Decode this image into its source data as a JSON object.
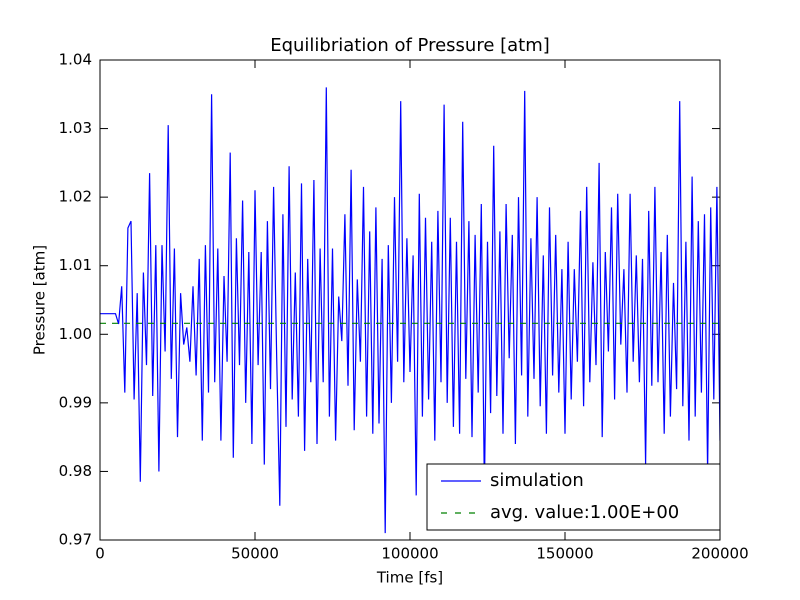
{
  "chart_data": {
    "type": "line",
    "title": "Equilibriation of Pressure [atm]",
    "x_label": "Time [fs]",
    "y_label": "Pressure [atm]",
    "xlim": [
      0,
      200000
    ],
    "xticks": [
      0,
      50000,
      100000,
      150000,
      200000
    ],
    "ylim": [
      0.97,
      1.04
    ],
    "yticks": [
      0.97,
      0.98,
      0.99,
      {
        "value": 1,
        "label": "1.00"
      },
      1.01,
      1.02,
      1.03,
      1.04
    ],
    "grid": false,
    "legend": "lower right",
    "series": [
      {
        "name": "simulation",
        "color": "#0000ff",
        "style": "solid",
        "x": [
          0,
          1000,
          2000,
          3000,
          4000,
          5000,
          6000,
          7000,
          8000,
          9000,
          10000,
          11000,
          12000,
          13000,
          14000,
          15000,
          16000,
          17000,
          18000,
          19000,
          20000,
          21000,
          22000,
          23000,
          24000,
          25000,
          26000,
          27000,
          28000,
          29000,
          30000,
          31000,
          32000,
          33000,
          34000,
          35000,
          36000,
          37000,
          38000,
          39000,
          40000,
          41000,
          42000,
          43000,
          44000,
          45000,
          46000,
          47000,
          48000,
          49000,
          50000,
          51000,
          52000,
          53000,
          54000,
          55000,
          56000,
          57000,
          58000,
          59000,
          60000,
          61000,
          62000,
          63000,
          64000,
          65000,
          66000,
          67000,
          68000,
          69000,
          70000,
          71000,
          72000,
          73000,
          74000,
          75000,
          76000,
          77000,
          78000,
          79000,
          80000,
          81000,
          82000,
          83000,
          84000,
          85000,
          86000,
          87000,
          88000,
          89000,
          90000,
          91000,
          92000,
          93000,
          94000,
          95000,
          96000,
          97000,
          98000,
          99000,
          100000,
          101000,
          102000,
          103000,
          104000,
          105000,
          106000,
          107000,
          108000,
          109000,
          110000,
          111000,
          112000,
          113000,
          114000,
          115000,
          116000,
          117000,
          118000,
          119000,
          120000,
          121000,
          122000,
          123000,
          124000,
          125000,
          126000,
          127000,
          128000,
          129000,
          130000,
          131000,
          132000,
          133000,
          134000,
          135000,
          136000,
          137000,
          138000,
          139000,
          140000,
          141000,
          142000,
          143000,
          144000,
          145000,
          146000,
          147000,
          148000,
          149000,
          150000,
          151000,
          152000,
          153000,
          154000,
          155000,
          156000,
          157000,
          158000,
          159000,
          160000,
          161000,
          162000,
          163000,
          164000,
          165000,
          166000,
          167000,
          168000,
          169000,
          170000,
          171000,
          172000,
          173000,
          174000,
          175000,
          176000,
          177000,
          178000,
          179000,
          180000,
          181000,
          182000,
          183000,
          184000,
          185000,
          186000,
          187000,
          188000,
          189000,
          190000,
          191000,
          192000,
          193000,
          194000,
          195000,
          196000,
          197000,
          198000,
          199000,
          200000
        ],
        "values": [
          1.003,
          1.003,
          1.003,
          1.003,
          1.003,
          1.003,
          1.0015,
          1.007,
          0.9915,
          1.0155,
          1.0165,
          0.9905,
          1.006,
          0.9785,
          1.009,
          0.9955,
          1.0235,
          0.991,
          1.013,
          0.98,
          1.013,
          0.9975,
          1.0305,
          0.9935,
          1.0125,
          0.985,
          1.006,
          0.9985,
          1.001,
          0.996,
          1.007,
          0.994,
          1.011,
          0.9845,
          1.013,
          0.9915,
          1.035,
          0.993,
          1.0125,
          0.9845,
          1.0085,
          0.996,
          1.0265,
          0.982,
          1.014,
          0.9955,
          1.0195,
          0.99,
          1.012,
          0.984,
          1.021,
          0.9955,
          1.012,
          0.981,
          1.0165,
          0.992,
          1.0215,
          0.9965,
          0.975,
          1.0175,
          0.9865,
          1.0245,
          0.9905,
          1.009,
          0.988,
          1.022,
          0.983,
          1.011,
          0.993,
          1.0225,
          0.984,
          1.0125,
          0.993,
          1.036,
          0.988,
          1.0125,
          0.9845,
          1.0055,
          0.999,
          1.0175,
          0.9925,
          1.024,
          0.986,
          1.008,
          0.996,
          1.0215,
          0.988,
          1.015,
          0.9855,
          1.0185,
          0.987,
          1.011,
          0.971,
          1.013,
          0.99,
          1.02,
          0.996,
          1.034,
          0.993,
          1.014,
          0.9945,
          1.0115,
          0.9765,
          1.0205,
          0.988,
          1.017,
          0.9905,
          1.0135,
          0.9845,
          1.018,
          0.993,
          1.0335,
          0.99,
          1.017,
          0.9865,
          1.0135,
          0.9855,
          1.031,
          0.9935,
          1.0165,
          0.985,
          1.0145,
          0.9915,
          1.019,
          0.977,
          1.0135,
          0.9885,
          1.0275,
          0.991,
          1.015,
          0.9855,
          1.019,
          0.9965,
          1.0145,
          0.984,
          1.02,
          0.994,
          1.0355,
          0.988,
          1.014,
          0.9935,
          1.02,
          0.9895,
          1.0115,
          0.9855,
          1.0185,
          0.994,
          1.0145,
          0.9915,
          1.0095,
          0.9855,
          1.0135,
          0.9905,
          1.0095,
          0.996,
          1.018,
          0.9895,
          1.0215,
          0.993,
          1.0105,
          0.9955,
          1.025,
          0.985,
          1.012,
          0.9975,
          1.0185,
          0.9905,
          1.0205,
          0.9985,
          1.0095,
          0.9915,
          1.0205,
          0.996,
          1.0115,
          0.993,
          1.011,
          0.981,
          1.018,
          0.9925,
          1.0215,
          0.993,
          1.012,
          0.9855,
          1.0145,
          0.988,
          1.0075,
          0.992,
          1.034,
          0.9895,
          1.0135,
          0.9845,
          1.023,
          0.988,
          1.0165,
          0.9915,
          1.0175,
          0.98,
          1.0185,
          0.9905,
          1.0215,
          0.9845
        ]
      },
      {
        "name": "avg. value:1.00E+00",
        "color": "#008000",
        "style": "dashed",
        "x": [
          0,
          200000
        ],
        "values": [
          1.0016,
          1.0016
        ]
      }
    ]
  }
}
